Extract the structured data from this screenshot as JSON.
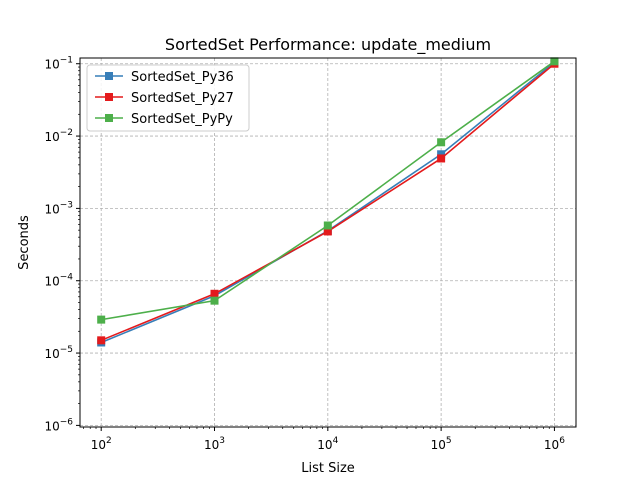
{
  "chart_data": {
    "type": "line",
    "title": "SortedSet Performance: update_medium",
    "xlabel": "List Size",
    "ylabel": "Seconds",
    "xscale": "log",
    "yscale": "log",
    "xlim": [
      65,
      1550000
    ],
    "ylim": [
      9.5e-07,
      0.12
    ],
    "grid": true,
    "legend_position": "upper-left",
    "x": [
      100,
      1000,
      10000,
      100000,
      1000000
    ],
    "x_ticks": [
      {
        "base": "10",
        "exp": "2",
        "value": 100
      },
      {
        "base": "10",
        "exp": "3",
        "value": 1000
      },
      {
        "base": "10",
        "exp": "4",
        "value": 10000
      },
      {
        "base": "10",
        "exp": "5",
        "value": 100000
      },
      {
        "base": "10",
        "exp": "6",
        "value": 1000000
      }
    ],
    "y_ticks": [
      {
        "base": "10",
        "exp": "−6",
        "value": 1e-06
      },
      {
        "base": "10",
        "exp": "−5",
        "value": 1e-05
      },
      {
        "base": "10",
        "exp": "−4",
        "value": 0.0001
      },
      {
        "base": "10",
        "exp": "−3",
        "value": 0.001
      },
      {
        "base": "10",
        "exp": "−2",
        "value": 0.01
      },
      {
        "base": "10",
        "exp": "−1",
        "value": 0.1
      }
    ],
    "series": [
      {
        "name": "SortedSet_Py36",
        "color": "#377eb8",
        "values": [
          1.4e-05,
          6.2e-05,
          0.00049,
          0.0056,
          0.105
        ]
      },
      {
        "name": "SortedSet_Py27",
        "color": "#e41a1c",
        "values": [
          1.5e-05,
          6.6e-05,
          0.00048,
          0.0049,
          0.1
        ]
      },
      {
        "name": "SortedSet_PyPy",
        "color": "#4daf4a",
        "values": [
          2.9e-05,
          5.3e-05,
          0.00058,
          0.0082,
          0.108
        ]
      }
    ]
  }
}
